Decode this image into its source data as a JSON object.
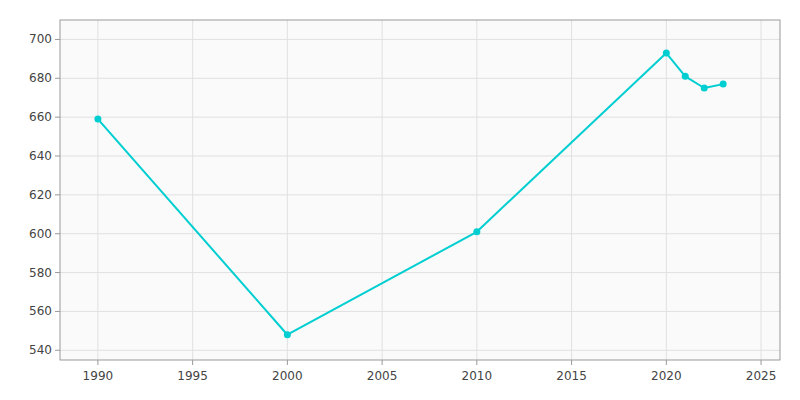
{
  "chart_data": {
    "type": "line",
    "x": [
      1990,
      2000,
      2010,
      2020,
      2021,
      2022,
      2023
    ],
    "values": [
      659,
      548,
      601,
      693,
      681,
      675,
      677
    ],
    "color": "#00CED1",
    "marker": "circle",
    "xlim": [
      1988,
      2026
    ],
    "ylim": [
      535,
      710
    ],
    "xticks": [
      1990,
      1995,
      2000,
      2005,
      2010,
      2015,
      2020,
      2025
    ],
    "yticks": [
      540,
      560,
      580,
      600,
      620,
      640,
      660,
      680,
      700
    ],
    "grid": true
  }
}
